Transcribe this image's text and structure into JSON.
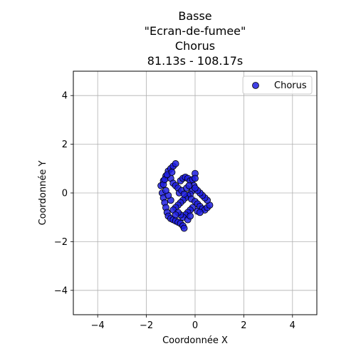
{
  "chart_data": {
    "type": "scatter",
    "title_lines": [
      "Basse",
      "\"Ecran-de-fumee\"",
      "Chorus",
      "81.13s - 108.17s"
    ],
    "xlabel": "Coordonnée X",
    "ylabel": "Coordonnée Y",
    "xlim": [
      -5,
      5
    ],
    "ylim": [
      -5,
      5
    ],
    "xticks": [
      -4,
      -2,
      0,
      2,
      4
    ],
    "yticks": [
      -4,
      -2,
      0,
      2,
      4
    ],
    "xtick_labels": [
      "−4",
      "−2",
      "0",
      "2",
      "4"
    ],
    "ytick_labels": [
      "−4",
      "−2",
      "0",
      "2",
      "4"
    ],
    "grid": true,
    "legend": {
      "position": "top-right",
      "entries": [
        "Chorus"
      ]
    },
    "series": [
      {
        "name": "Chorus",
        "color": "#1f1fe0",
        "edgecolor": "#000000",
        "points": [
          [
            -1.2,
            0.7
          ],
          [
            -1.1,
            0.9
          ],
          [
            -1.0,
            1.0
          ],
          [
            -0.9,
            1.1
          ],
          [
            -0.8,
            1.2
          ],
          [
            -1.3,
            0.5
          ],
          [
            -1.4,
            0.3
          ],
          [
            -1.35,
            0.0
          ],
          [
            -1.3,
            -0.2
          ],
          [
            -1.25,
            -0.4
          ],
          [
            -1.2,
            -0.6
          ],
          [
            -1.15,
            -0.8
          ],
          [
            -1.1,
            -0.95
          ],
          [
            -1.0,
            -1.05
          ],
          [
            -0.9,
            -1.1
          ],
          [
            -0.8,
            -1.15
          ],
          [
            -0.7,
            -1.2
          ],
          [
            -0.6,
            -1.25
          ],
          [
            -0.5,
            -1.35
          ],
          [
            -0.45,
            -1.45
          ],
          [
            -1.0,
            0.6
          ],
          [
            -0.9,
            0.4
          ],
          [
            -0.8,
            0.3
          ],
          [
            -0.7,
            0.2
          ],
          [
            -0.6,
            0.5
          ],
          [
            -0.5,
            0.6
          ],
          [
            -0.4,
            0.65
          ],
          [
            -0.3,
            0.6
          ],
          [
            -0.2,
            0.5
          ],
          [
            -0.1,
            0.55
          ],
          [
            0.0,
            0.8
          ],
          [
            0.0,
            0.6
          ],
          [
            -0.05,
            0.3
          ],
          [
            -0.1,
            0.1
          ],
          [
            -0.2,
            -0.05
          ],
          [
            -0.3,
            -0.1
          ],
          [
            -0.4,
            -0.2
          ],
          [
            -0.5,
            -0.3
          ],
          [
            -0.6,
            -0.4
          ],
          [
            -0.7,
            -0.5
          ],
          [
            -0.8,
            -0.6
          ],
          [
            -0.9,
            -0.7
          ],
          [
            -1.0,
            -0.3
          ],
          [
            -1.1,
            -0.1
          ],
          [
            -1.2,
            0.1
          ],
          [
            -0.65,
            0.0
          ],
          [
            -0.55,
            0.1
          ],
          [
            -0.45,
            -0.05
          ],
          [
            -0.35,
            0.2
          ],
          [
            -0.25,
            0.3
          ],
          [
            -0.15,
            -0.25
          ],
          [
            0.0,
            -0.35
          ],
          [
            0.1,
            -0.45
          ],
          [
            0.2,
            -0.55
          ],
          [
            0.3,
            -0.65
          ],
          [
            0.4,
            -0.7
          ],
          [
            0.5,
            -0.6
          ],
          [
            0.6,
            -0.5
          ],
          [
            0.5,
            -0.3
          ],
          [
            0.4,
            -0.2
          ],
          [
            0.3,
            -0.1
          ],
          [
            0.2,
            0.0
          ],
          [
            0.1,
            0.1
          ],
          [
            0.0,
            0.2
          ],
          [
            -0.1,
            -0.6
          ],
          [
            -0.2,
            -0.7
          ],
          [
            -0.3,
            -0.8
          ],
          [
            -0.4,
            -0.9
          ],
          [
            -0.5,
            -1.0
          ],
          [
            -0.6,
            -0.9
          ],
          [
            -0.7,
            -0.8
          ],
          [
            -0.8,
            -0.9
          ],
          [
            -0.3,
            -1.1
          ],
          [
            -0.2,
            -0.95
          ],
          [
            0.1,
            -0.75
          ],
          [
            0.2,
            -0.8
          ],
          [
            -1.3,
            0.35
          ],
          [
            -1.25,
            0.55
          ],
          [
            -1.15,
            0.75
          ],
          [
            -0.95,
            0.85
          ]
        ]
      }
    ]
  }
}
